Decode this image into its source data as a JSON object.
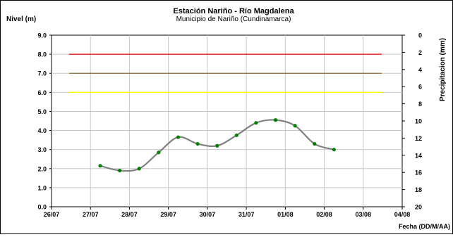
{
  "chart_data": {
    "type": "line",
    "title": "Estación Nariño  - Río Magdalena",
    "subtitle": "Municipio de Nariño (Cundinamarca)",
    "ylabel": "Nivel (m)",
    "y2label": "Precipitacion (mm)",
    "xlabel": "Fecha (DD/M/AA)",
    "x_ticks": [
      "26/07",
      "27/07",
      "28/07",
      "29/07",
      "30/07",
      "31/07",
      "01/08",
      "02/08",
      "03/08",
      "04/08"
    ],
    "y_ticks": [
      "0.0",
      "1.0",
      "2.0",
      "3.0",
      "4.0",
      "5.0",
      "6.0",
      "7.0",
      "8.0",
      "9.0"
    ],
    "y2_ticks": [
      "0",
      "2",
      "4",
      "6",
      "8",
      "10",
      "12",
      "14",
      "16",
      "18",
      "20"
    ],
    "ylim": [
      0,
      9
    ],
    "y2lim": [
      0,
      20
    ],
    "y2_inverted": true,
    "grid": true,
    "threshold_lines": [
      {
        "value": 8.0,
        "color": "#e00000"
      },
      {
        "value": 7.0,
        "color": "#8b6a3a"
      },
      {
        "value": 6.0,
        "color": "#ffff00"
      }
    ],
    "series": [
      {
        "x": [
          "27/07 06:00",
          "27/07 18:00",
          "28/07 06:00",
          "28/07 18:00",
          "29/07 06:00",
          "29/07 18:00",
          "30/07 06:00",
          "30/07 18:00",
          "31/07 06:00",
          "31/07 18:00",
          "01/08 06:00",
          "01/08 18:00",
          "02/08 06:00"
        ],
        "values": [
          2.15,
          1.9,
          2.0,
          2.85,
          3.65,
          3.3,
          3.2,
          3.75,
          4.4,
          4.55,
          4.25,
          3.3,
          3.0
        ],
        "line_color": "#808080",
        "marker_color": "#008000"
      }
    ]
  }
}
